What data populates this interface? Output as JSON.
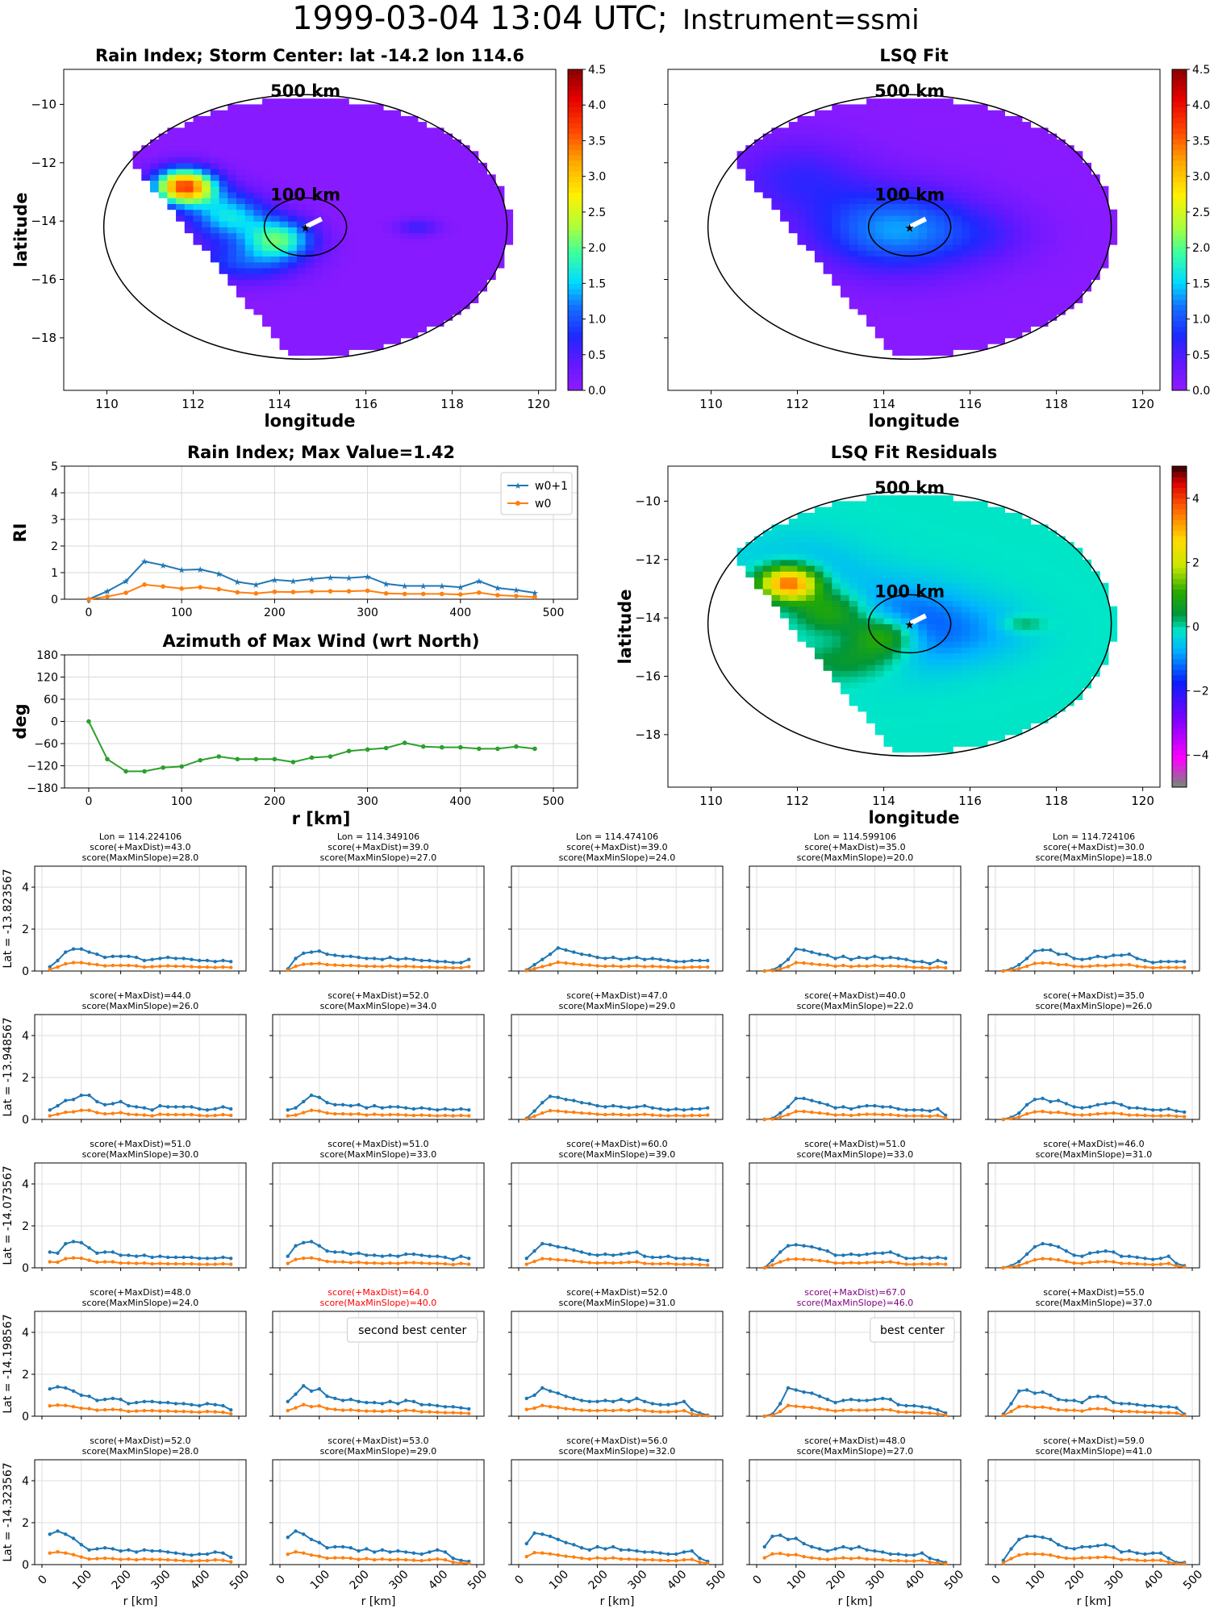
{
  "figure": {
    "title_left": "1999-03-04 13:04 UTC;",
    "title_right": "Instrument=ssmi"
  },
  "maps": {
    "rain": {
      "title": "Rain Index; Storm Center: lat -14.2 lon 114.6"
    },
    "lsq": {
      "title": "LSQ Fit"
    },
    "resid": {
      "title": "LSQ Fit Residuals"
    },
    "xlabel": "longitude",
    "ylabel": "latitude",
    "ring_outer_label": "500 km",
    "ring_inner_label": "100 km",
    "lon_ticks": [
      "110",
      "112",
      "114",
      "116",
      "118",
      "120"
    ],
    "lat_ticks": [
      "−10",
      "−12",
      "−14",
      "−16",
      "−18"
    ],
    "cbar_ticks_rain": [
      "0.0",
      "0.5",
      "1.0",
      "1.5",
      "2.0",
      "2.5",
      "3.0",
      "3.5",
      "4.0",
      "4.5"
    ],
    "cbar_ticks_resid": [
      "−4",
      "−2",
      "0",
      "2",
      "4"
    ],
    "colors": {
      "background": "#8c1aff",
      "resid_background": "#13a86a"
    }
  },
  "chart_data": [
    {
      "type": "line",
      "title": "Rain Index; Max Value=1.42",
      "ylabel": "RI",
      "xlim": [
        0,
        500
      ],
      "ylim": [
        0,
        5
      ],
      "x_ticks": [
        "0",
        "100",
        "200",
        "300",
        "400",
        "500"
      ],
      "y_ticks": [
        "0",
        "1",
        "2",
        "3",
        "4",
        "5"
      ],
      "grid": true,
      "legend_position": "top-right",
      "x": [
        0,
        20,
        40,
        60,
        80,
        100,
        120,
        140,
        160,
        180,
        200,
        220,
        240,
        260,
        280,
        300,
        320,
        340,
        360,
        380,
        400,
        420,
        440,
        460,
        480
      ],
      "series": [
        {
          "name": "w0+1",
          "color": "#1f77b4",
          "marker": "star",
          "values": [
            0,
            0.3,
            0.68,
            1.42,
            1.28,
            1.1,
            1.12,
            0.96,
            0.65,
            0.55,
            0.73,
            0.68,
            0.76,
            0.82,
            0.8,
            0.85,
            0.58,
            0.5,
            0.5,
            0.5,
            0.45,
            0.68,
            0.42,
            0.35,
            0.24
          ]
        },
        {
          "name": "w0",
          "color": "#ff7f0e",
          "marker": "dot",
          "values": [
            0,
            0.1,
            0.24,
            0.55,
            0.48,
            0.4,
            0.45,
            0.38,
            0.26,
            0.22,
            0.28,
            0.27,
            0.29,
            0.3,
            0.3,
            0.32,
            0.22,
            0.2,
            0.2,
            0.2,
            0.18,
            0.25,
            0.15,
            0.12,
            0.08
          ]
        }
      ]
    },
    {
      "type": "line",
      "title": "Azimuth of Max Wind (wrt North)",
      "xlabel": "r [km]",
      "ylabel": "deg",
      "xlim": [
        0,
        500
      ],
      "ylim": [
        -180,
        180
      ],
      "x_ticks": [
        "0",
        "100",
        "200",
        "300",
        "400",
        "500"
      ],
      "y_ticks": [
        "180",
        "120",
        "60",
        "0",
        "−60",
        "−120",
        "−180"
      ],
      "grid": true,
      "x": [
        0,
        20,
        40,
        60,
        80,
        100,
        120,
        140,
        160,
        180,
        200,
        220,
        240,
        260,
        280,
        300,
        320,
        340,
        360,
        380,
        400,
        420,
        440,
        460,
        480
      ],
      "series": [
        {
          "color": "#2ca02c",
          "values": [
            0,
            -102,
            -135,
            -135,
            -125,
            -122,
            -105,
            -95,
            -102,
            -102,
            -102,
            -110,
            -98,
            -95,
            -80,
            -76,
            -72,
            -58,
            -68,
            -70,
            -70,
            -74,
            -74,
            -68,
            -74
          ]
        }
      ]
    }
  ],
  "grid": {
    "lons": [
      "Lon = 114.224106",
      "Lon = 114.349106",
      "Lon = 114.474106",
      "Lon = 114.599106",
      "Lon = 114.724106"
    ],
    "lats": [
      "Lat = -13.823567",
      "Lat = -13.948567",
      "Lat = -14.073567",
      "Lat = -14.198567",
      "Lat = -14.323567"
    ],
    "xlabel": "r [km]",
    "x_ticks": [
      "0",
      "100",
      "200",
      "300",
      "400",
      "500"
    ],
    "y_ticks": [
      "0",
      "2",
      "4"
    ],
    "ylim": [
      0,
      5
    ],
    "scores": [
      [
        [
          "score(+MaxDist)=43.0",
          "score(MaxMinSlope)=28.0"
        ],
        [
          "score(+MaxDist)=39.0",
          "score(MaxMinSlope)=27.0"
        ],
        [
          "score(+MaxDist)=39.0",
          "score(MaxMinSlope)=24.0"
        ],
        [
          "score(+MaxDist)=35.0",
          "score(MaxMinSlope)=20.0"
        ],
        [
          "score(+MaxDist)=30.0",
          "score(MaxMinSlope)=18.0"
        ]
      ],
      [
        [
          "score(+MaxDist)=44.0",
          "score(MaxMinSlope)=26.0"
        ],
        [
          "score(+MaxDist)=52.0",
          "score(MaxMinSlope)=34.0"
        ],
        [
          "score(+MaxDist)=47.0",
          "score(MaxMinSlope)=29.0"
        ],
        [
          "score(+MaxDist)=40.0",
          "score(MaxMinSlope)=22.0"
        ],
        [
          "score(+MaxDist)=35.0",
          "score(MaxMinSlope)=26.0"
        ]
      ],
      [
        [
          "score(+MaxDist)=51.0",
          "score(MaxMinSlope)=30.0"
        ],
        [
          "score(+MaxDist)=51.0",
          "score(MaxMinSlope)=33.0"
        ],
        [
          "score(+MaxDist)=60.0",
          "score(MaxMinSlope)=39.0"
        ],
        [
          "score(+MaxDist)=51.0",
          "score(MaxMinSlope)=33.0"
        ],
        [
          "score(+MaxDist)=46.0",
          "score(MaxMinSlope)=31.0"
        ]
      ],
      [
        [
          "score(+MaxDist)=48.0",
          "score(MaxMinSlope)=24.0"
        ],
        [
          "score(+MaxDist)=64.0",
          "score(MaxMinSlope)=40.0"
        ],
        [
          "score(+MaxDist)=52.0",
          "score(MaxMinSlope)=31.0"
        ],
        [
          "score(+MaxDist)=67.0",
          "score(MaxMinSlope)=46.0"
        ],
        [
          "score(+MaxDist)=55.0",
          "score(MaxMinSlope)=37.0"
        ]
      ],
      [
        [
          "score(+MaxDist)=52.0",
          "score(MaxMinSlope)=28.0"
        ],
        [
          "score(+MaxDist)=53.0",
          "score(MaxMinSlope)=29.0"
        ],
        [
          "score(+MaxDist)=56.0",
          "score(MaxMinSlope)=32.0"
        ],
        [
          "score(+MaxDist)=48.0",
          "score(MaxMinSlope)=27.0"
        ],
        [
          "score(+MaxDist)=59.0",
          "score(MaxMinSlope)=41.0"
        ]
      ]
    ],
    "highlights": [
      {
        "row": 3,
        "col": 1,
        "label": "second best center",
        "color": "#ff0000"
      },
      {
        "row": 3,
        "col": 3,
        "label": "best center",
        "color": "#800080"
      }
    ],
    "profiles": {
      "x": [
        20,
        40,
        60,
        80,
        100,
        120,
        140,
        160,
        180,
        200,
        220,
        240,
        260,
        280,
        300,
        320,
        340,
        360,
        380,
        400,
        420,
        440,
        460,
        480
      ],
      "cells": [
        [
          [
            0.2,
            0.5,
            0.9,
            1.05,
            1.05,
            0.9,
            0.8,
            0.65,
            0.7,
            0.7,
            0.7,
            0.65,
            0.5,
            0.55,
            0.6,
            0.65,
            0.6,
            0.6,
            0.55,
            0.5,
            0.5,
            0.45,
            0.5,
            0.45
          ],
          [
            0.1,
            0.6,
            0.85,
            0.9,
            0.95,
            0.8,
            0.75,
            0.7,
            0.7,
            0.65,
            0.6,
            0.6,
            0.55,
            0.65,
            0.55,
            0.6,
            0.55,
            0.5,
            0.5,
            0.45,
            0.45,
            0.4,
            0.4,
            0.55
          ],
          [
            0.05,
            0.3,
            0.55,
            0.8,
            1.1,
            1.0,
            0.9,
            0.8,
            0.75,
            0.65,
            0.6,
            0.65,
            0.55,
            0.6,
            0.65,
            0.55,
            0.6,
            0.55,
            0.5,
            0.45,
            0.45,
            0.5,
            0.5,
            0.5
          ],
          [
            0.0,
            0.05,
            0.25,
            0.55,
            1.05,
            1.0,
            0.9,
            0.8,
            0.75,
            0.6,
            0.7,
            0.55,
            0.65,
            0.6,
            0.7,
            0.6,
            0.65,
            0.6,
            0.55,
            0.45,
            0.45,
            0.35,
            0.5,
            0.4
          ],
          [
            0.0,
            0.1,
            0.3,
            0.6,
            0.95,
            1.0,
            1.0,
            0.8,
            0.8,
            0.6,
            0.55,
            0.6,
            0.7,
            0.65,
            0.75,
            0.75,
            0.8,
            0.6,
            0.5,
            0.4,
            0.45,
            0.45,
            0.45,
            0.45
          ]
        ],
        [
          [
            0.45,
            0.65,
            0.9,
            0.95,
            1.15,
            1.15,
            0.85,
            0.7,
            0.75,
            0.85,
            0.65,
            0.6,
            0.55,
            0.45,
            0.65,
            0.6,
            0.6,
            0.6,
            0.6,
            0.5,
            0.45,
            0.5,
            0.6,
            0.5
          ],
          [
            0.45,
            0.55,
            0.85,
            1.15,
            1.05,
            0.8,
            0.7,
            0.7,
            0.65,
            0.7,
            0.55,
            0.65,
            0.55,
            0.6,
            0.6,
            0.55,
            0.5,
            0.55,
            0.5,
            0.45,
            0.5,
            0.45,
            0.5,
            0.45
          ],
          [
            0.05,
            0.4,
            0.8,
            1.1,
            1.05,
            0.95,
            0.9,
            0.8,
            0.75,
            0.65,
            0.6,
            0.65,
            0.6,
            0.55,
            0.6,
            0.65,
            0.55,
            0.5,
            0.45,
            0.5,
            0.45,
            0.5,
            0.5,
            0.55
          ],
          [
            0.0,
            0.05,
            0.3,
            0.6,
            1.0,
            1.0,
            0.9,
            0.8,
            0.7,
            0.55,
            0.6,
            0.5,
            0.6,
            0.65,
            0.65,
            0.6,
            0.6,
            0.5,
            0.45,
            0.45,
            0.45,
            0.4,
            0.5,
            0.2
          ],
          [
            0.0,
            0.1,
            0.3,
            0.7,
            0.95,
            1.0,
            0.85,
            0.9,
            0.75,
            0.6,
            0.55,
            0.6,
            0.7,
            0.75,
            0.8,
            0.7,
            0.55,
            0.55,
            0.5,
            0.45,
            0.45,
            0.5,
            0.4,
            0.35
          ]
        ],
        [
          [
            0.75,
            0.7,
            1.15,
            1.25,
            1.2,
            0.95,
            0.7,
            0.75,
            0.75,
            0.6,
            0.6,
            0.55,
            0.6,
            0.5,
            0.55,
            0.5,
            0.5,
            0.5,
            0.5,
            0.45,
            0.45,
            0.45,
            0.5,
            0.45
          ],
          [
            0.55,
            1.05,
            1.2,
            1.25,
            1.05,
            0.8,
            0.75,
            0.75,
            0.65,
            0.7,
            0.6,
            0.6,
            0.55,
            0.6,
            0.55,
            0.65,
            0.65,
            0.6,
            0.55,
            0.55,
            0.5,
            0.4,
            0.55,
            0.45
          ],
          [
            0.45,
            0.8,
            1.15,
            1.1,
            1.0,
            0.95,
            0.85,
            0.75,
            0.65,
            0.6,
            0.65,
            0.6,
            0.65,
            0.7,
            0.75,
            0.55,
            0.5,
            0.5,
            0.55,
            0.45,
            0.45,
            0.45,
            0.4,
            0.35
          ],
          [
            0.0,
            0.35,
            0.75,
            1.05,
            1.1,
            1.05,
            1.0,
            0.9,
            0.8,
            0.6,
            0.6,
            0.65,
            0.6,
            0.65,
            0.7,
            0.7,
            0.75,
            0.6,
            0.45,
            0.45,
            0.5,
            0.45,
            0.5,
            0.45
          ],
          [
            0.0,
            0.1,
            0.3,
            0.65,
            1.0,
            1.15,
            1.1,
            1.0,
            0.8,
            0.6,
            0.55,
            0.7,
            0.75,
            0.8,
            0.75,
            0.55,
            0.55,
            0.5,
            0.45,
            0.4,
            0.45,
            0.55,
            0.2,
            0.1
          ]
        ],
        [
          [
            1.3,
            1.4,
            1.35,
            1.2,
            1.0,
            0.95,
            0.75,
            0.8,
            0.85,
            0.8,
            0.6,
            0.65,
            0.7,
            0.7,
            0.65,
            0.65,
            0.6,
            0.6,
            0.55,
            0.5,
            0.6,
            0.55,
            0.5,
            0.3
          ],
          [
            0.7,
            1.05,
            1.45,
            1.2,
            1.3,
            0.95,
            0.85,
            0.75,
            0.8,
            0.7,
            0.65,
            0.65,
            0.6,
            0.7,
            0.6,
            0.75,
            0.7,
            0.55,
            0.55,
            0.5,
            0.45,
            0.45,
            0.4,
            0.35
          ],
          [
            0.85,
            1.0,
            1.35,
            1.2,
            1.1,
            0.95,
            0.85,
            0.75,
            0.7,
            0.7,
            0.75,
            0.7,
            0.8,
            0.7,
            0.85,
            0.7,
            0.6,
            0.55,
            0.55,
            0.6,
            0.7,
            0.3,
            0.15,
            0.05
          ],
          [
            0.0,
            0.1,
            0.6,
            1.35,
            1.25,
            1.15,
            1.1,
            0.95,
            0.8,
            0.65,
            0.75,
            0.8,
            0.75,
            0.75,
            0.8,
            0.85,
            0.8,
            0.55,
            0.5,
            0.5,
            0.45,
            0.4,
            0.3,
            0.15
          ],
          [
            0.1,
            0.6,
            1.2,
            1.25,
            1.1,
            1.15,
            1.0,
            0.8,
            0.75,
            0.75,
            0.65,
            0.9,
            0.95,
            0.9,
            0.65,
            0.6,
            0.6,
            0.55,
            0.5,
            0.5,
            0.45,
            0.45,
            0.4,
            0.1
          ]
        ],
        [
          [
            1.45,
            1.6,
            1.45,
            1.25,
            0.95,
            0.7,
            0.75,
            0.8,
            0.75,
            0.65,
            0.7,
            0.6,
            0.7,
            0.65,
            0.65,
            0.6,
            0.55,
            0.5,
            0.45,
            0.5,
            0.5,
            0.6,
            0.55,
            0.35
          ],
          [
            1.3,
            1.6,
            1.45,
            1.2,
            1.05,
            0.8,
            0.85,
            0.85,
            0.8,
            0.65,
            0.75,
            0.6,
            0.7,
            0.6,
            0.65,
            0.6,
            0.55,
            0.5,
            0.6,
            0.7,
            0.6,
            0.3,
            0.2,
            0.15
          ],
          [
            1.0,
            1.5,
            1.45,
            1.35,
            1.2,
            1.05,
            0.95,
            0.8,
            0.7,
            0.85,
            0.75,
            0.85,
            0.7,
            0.7,
            0.65,
            0.6,
            0.6,
            0.55,
            0.5,
            0.5,
            0.6,
            0.65,
            0.3,
            0.15
          ],
          [
            0.85,
            1.35,
            1.4,
            1.2,
            1.25,
            1.0,
            0.85,
            0.75,
            0.65,
            0.75,
            0.85,
            0.75,
            0.85,
            0.7,
            0.65,
            0.6,
            0.5,
            0.5,
            0.45,
            0.45,
            0.55,
            0.3,
            0.2,
            0.1
          ],
          [
            0.2,
            0.75,
            1.2,
            1.35,
            1.35,
            1.3,
            1.2,
            0.95,
            0.8,
            0.75,
            0.85,
            0.85,
            0.9,
            0.95,
            0.85,
            0.6,
            0.65,
            0.55,
            0.5,
            0.55,
            0.55,
            0.3,
            0.1,
            0.1
          ]
        ]
      ]
    }
  }
}
